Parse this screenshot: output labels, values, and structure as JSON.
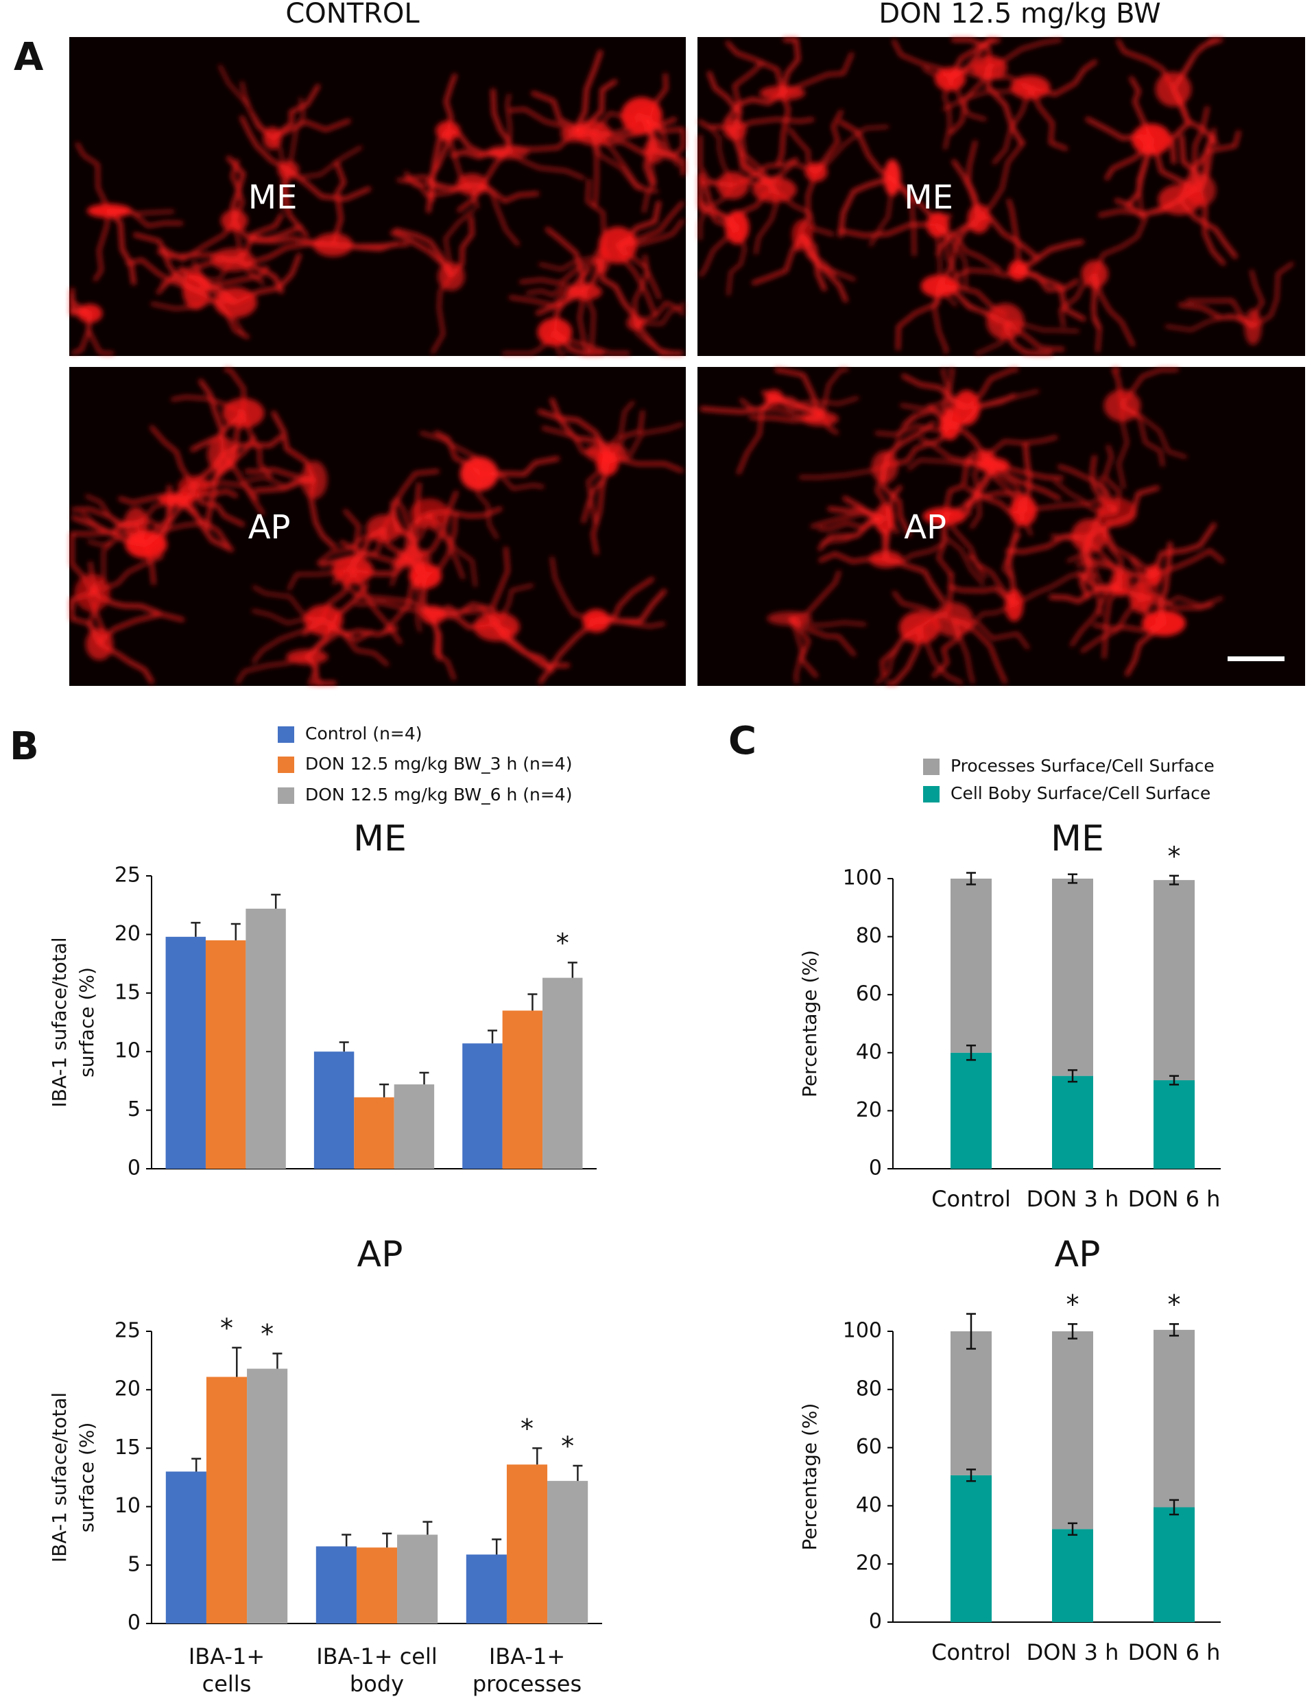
{
  "panel_a": {
    "label": "A",
    "columns": [
      "CONTROL",
      "DON 12.5 mg/kg BW"
    ],
    "regions": [
      "ME",
      "AP"
    ]
  },
  "panel_b": {
    "label": "B"
  },
  "panel_c": {
    "label": "C"
  },
  "chart_data": [
    {
      "type": "bar",
      "title": "ME",
      "ylabel": [
        "IBA-1  suface/total",
        "surface (%)"
      ],
      "categories": [
        null,
        null,
        null
      ],
      "series": [
        {
          "name": "Control (n=4)",
          "color": "#4472c4",
          "values": [
            19.8,
            10.0,
            10.7
          ],
          "errors": [
            1.2,
            0.8,
            1.1
          ],
          "significance": [
            null,
            null,
            null
          ]
        },
        {
          "name": "DON 12.5 mg/kg BW_3 h (n=4)",
          "color": "#ed7d31",
          "values": [
            19.5,
            6.1,
            13.5
          ],
          "errors": [
            1.4,
            1.1,
            1.4
          ],
          "significance": [
            null,
            null,
            null
          ]
        },
        {
          "name": "DON 12.5 mg/kg BW_6 h (n=4)",
          "color": "#a5a5a5",
          "values": [
            22.2,
            7.2,
            16.3
          ],
          "errors": [
            1.2,
            1.0,
            1.3
          ],
          "significance": [
            null,
            null,
            "*"
          ]
        }
      ],
      "ylim": [
        0,
        25
      ],
      "yticks": [
        0,
        5,
        10,
        15,
        20,
        25
      ],
      "legend": "top"
    },
    {
      "type": "bar",
      "title": "AP",
      "ylabel": [
        "IBA-1  suface/total",
        "surface (%)"
      ],
      "categories": [
        [
          "IBA-1+",
          "cells"
        ],
        [
          "IBA-1+ cell",
          "body"
        ],
        [
          "IBA-1+",
          "processes"
        ]
      ],
      "series": [
        {
          "color": "#4472c4",
          "values": [
            13.0,
            6.6,
            5.9
          ],
          "errors": [
            1.1,
            1.0,
            1.3
          ],
          "significance": [
            null,
            null,
            null
          ]
        },
        {
          "color": "#ed7d31",
          "values": [
            21.1,
            6.5,
            13.6
          ],
          "errors": [
            2.5,
            1.2,
            1.4
          ],
          "significance": [
            "*",
            null,
            "*"
          ]
        },
        {
          "color": "#a5a5a5",
          "values": [
            21.8,
            7.6,
            12.2
          ],
          "errors": [
            1.3,
            1.1,
            1.3
          ],
          "significance": [
            "*",
            null,
            "*"
          ]
        }
      ],
      "ylim": [
        0,
        25
      ],
      "yticks": [
        0,
        5,
        10,
        15,
        20,
        25
      ]
    },
    {
      "type": "stacked_bar",
      "title": "ME",
      "ylabel": [
        "Percentage (%)"
      ],
      "categories": [
        [
          "Control"
        ],
        [
          "DON 3 h"
        ],
        [
          "DON 6 h"
        ]
      ],
      "series": [
        {
          "name": "Cell Boby Surface/Cell Surface",
          "color": "#009e94",
          "values": [
            40,
            32,
            30.5
          ],
          "errors": [
            2.5,
            2,
            1.5
          ],
          "significance": [
            null,
            null,
            null
          ]
        },
        {
          "name": "Processes Surface/Cell Surface",
          "color": "#a0a0a0",
          "values": [
            60,
            68,
            69
          ],
          "errors": [
            2,
            1.5,
            1.5
          ],
          "significance": [
            null,
            null,
            "*"
          ]
        }
      ],
      "ylim": [
        0,
        100
      ],
      "yticks": [
        0,
        20,
        40,
        60,
        80,
        100
      ],
      "legend": "top"
    },
    {
      "type": "stacked_bar",
      "title": "AP",
      "ylabel": [
        "Percentage (%)"
      ],
      "categories": [
        [
          "Control"
        ],
        [
          "DON 3 h"
        ],
        [
          "DON 6 h"
        ]
      ],
      "series": [
        {
          "color": "#009e94",
          "values": [
            50.5,
            32,
            39.5
          ],
          "errors": [
            2,
            2,
            2.5
          ],
          "significance": [
            null,
            null,
            null
          ]
        },
        {
          "color": "#a0a0a0",
          "values": [
            49.5,
            68,
            61
          ],
          "errors": [
            6,
            2.5,
            2
          ],
          "significance": [
            null,
            "*",
            "*"
          ]
        }
      ],
      "ylim": [
        0,
        100
      ],
      "yticks": [
        0,
        20,
        40,
        60,
        80,
        100
      ]
    }
  ]
}
